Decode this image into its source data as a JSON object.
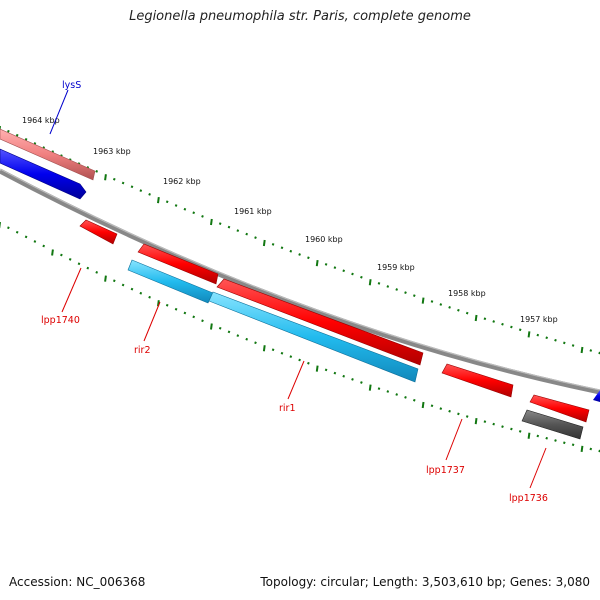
{
  "header": {
    "title": "Legionella pneumophila str. Paris, complete genome"
  },
  "footer": {
    "accession": "Accession: NC_006368",
    "topology": "Topology: circular; Length: 3,503,610 bp; Genes: 3,080"
  },
  "colors": {
    "forward_gene": "#ff0000",
    "reverse_gene": "#ee0000",
    "blue_gene": "#0000ee",
    "pink_gene": "#f08080",
    "rna_gene": "#22bbee",
    "other_gene": "#555555",
    "backbone": "#888888",
    "tick": "#117711",
    "label_red": "#dd0000",
    "label_blue": "#0000cc"
  },
  "kbp_labels": [
    "1964 kbp",
    "1963 kbp",
    "1962 kbp",
    "1961 kbp",
    "1960 kbp",
    "1959 kbp",
    "1958 kbp",
    "1957 kbp"
  ],
  "gene_labels": {
    "lysS": "lysS",
    "lpp1740": "lpp1740",
    "rir2": "rir2",
    "rir1": "rir1",
    "lpp1737": "lpp1737",
    "lpp1736": "lpp1736"
  }
}
